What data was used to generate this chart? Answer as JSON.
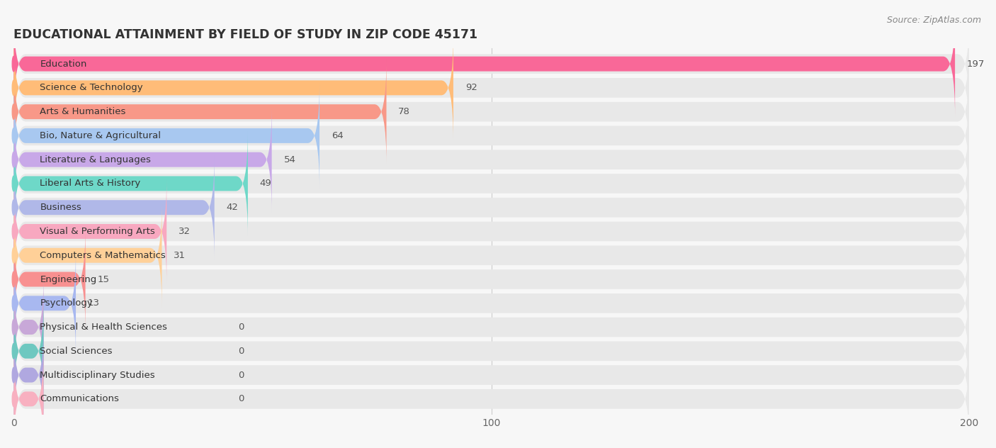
{
  "title": "EDUCATIONAL ATTAINMENT BY FIELD OF STUDY IN ZIP CODE 45171",
  "source": "Source: ZipAtlas.com",
  "categories": [
    "Education",
    "Science & Technology",
    "Arts & Humanities",
    "Bio, Nature & Agricultural",
    "Literature & Languages",
    "Liberal Arts & History",
    "Business",
    "Visual & Performing Arts",
    "Computers & Mathematics",
    "Engineering",
    "Psychology",
    "Physical & Health Sciences",
    "Social Sciences",
    "Multidisciplinary Studies",
    "Communications"
  ],
  "values": [
    197,
    92,
    78,
    64,
    54,
    49,
    42,
    32,
    31,
    15,
    13,
    0,
    0,
    0,
    0
  ],
  "bar_colors": [
    "#F96898",
    "#FFBC78",
    "#F89888",
    "#A8C8F0",
    "#C8A8E8",
    "#6ED8C8",
    "#B0B8E8",
    "#F8A8C0",
    "#FFD098",
    "#F89090",
    "#A8B8F0",
    "#C8A8D8",
    "#6EC8C0",
    "#B0A8E0",
    "#F8B0C0"
  ],
  "xlim": [
    0,
    200
  ],
  "xticks": [
    0,
    100,
    200
  ],
  "background_color": "#f7f7f7",
  "bar_background_color": "#e8e8e8",
  "title_fontsize": 12.5,
  "label_fontsize": 9.5,
  "value_fontsize": 9.5
}
